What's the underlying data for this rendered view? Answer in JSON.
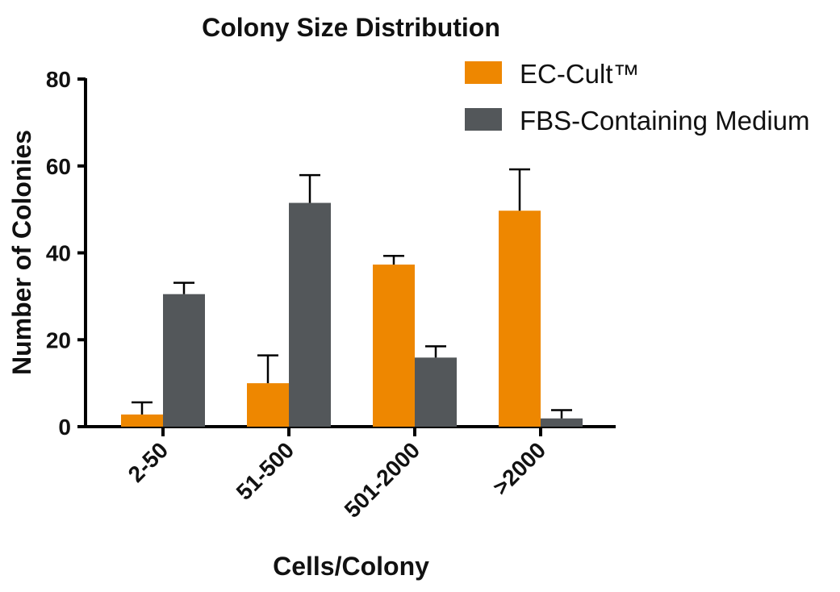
{
  "chart_data": {
    "type": "bar",
    "title": "Colony Size Distribution",
    "xlabel": "Cells/Colony",
    "ylabel": "Number of Colonies",
    "categories": [
      "2-50",
      "51-500",
      "501-2000",
      ">2000"
    ],
    "ylim": [
      0,
      80
    ],
    "yticks": [
      "0",
      "20",
      "40",
      "60",
      "80"
    ],
    "series": [
      {
        "name": "EC-Cult™",
        "color": "#ee8700",
        "values": [
          2.8,
          10,
          37.3,
          49.7
        ],
        "errors": [
          2.8,
          6.4,
          2.0,
          9.5
        ]
      },
      {
        "name": "FBS-Containing Medium",
        "color": "#53575a",
        "values": [
          30.5,
          51.5,
          15.9,
          1.9
        ],
        "errors": [
          2.6,
          6.4,
          2.6,
          1.9
        ]
      }
    ],
    "legend_position": "top-right",
    "grid": false,
    "error_bars": "upper"
  }
}
